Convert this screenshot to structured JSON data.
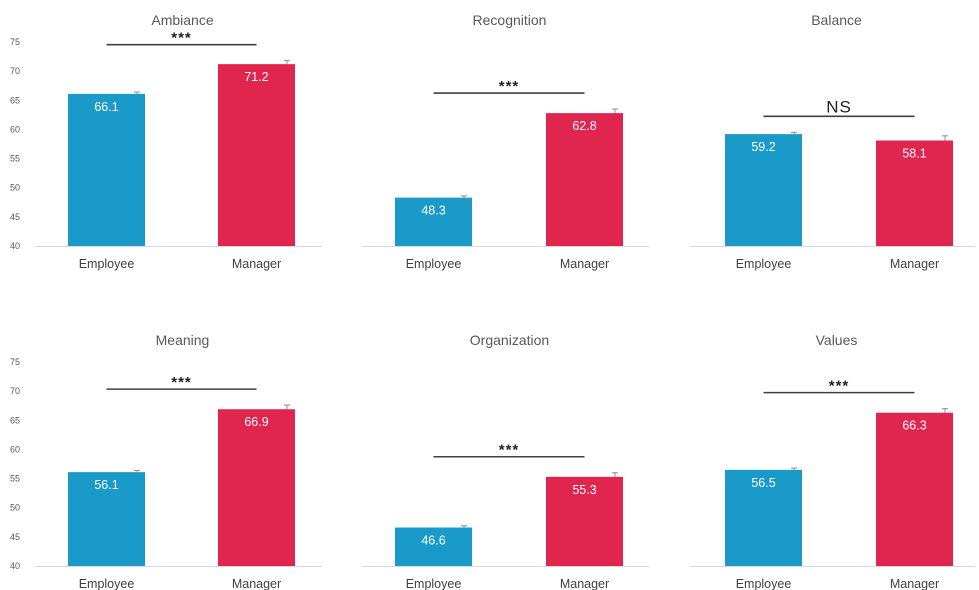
{
  "figure": {
    "colors": {
      "employee": "#1a9ac9",
      "manager": "#e0264f",
      "text": "#595959",
      "axis": "#d9d9d9"
    }
  },
  "chart_data": [
    {
      "type": "bar",
      "title": "Ambiance",
      "categories": [
        "Employee",
        "Manager"
      ],
      "values": [
        66.1,
        71.2
      ],
      "value_labels": [
        "66.1",
        "71.2"
      ],
      "error": [
        0.3,
        0.6
      ],
      "significance": "***",
      "ylim": [
        40,
        75
      ],
      "yticks": [
        40,
        45,
        50,
        55,
        60,
        65,
        70,
        75
      ],
      "show_yaxis": true,
      "grid": false
    },
    {
      "type": "bar",
      "title": "Recognition",
      "categories": [
        "Employee",
        "Manager"
      ],
      "values": [
        48.3,
        62.8
      ],
      "value_labels": [
        "48.3",
        "62.8"
      ],
      "error": [
        0.3,
        0.7
      ],
      "significance": "***",
      "ylim": [
        40,
        75
      ],
      "show_yaxis": false,
      "grid": false
    },
    {
      "type": "bar",
      "title": "Balance",
      "categories": [
        "Employee",
        "Manager"
      ],
      "values": [
        59.2,
        58.1
      ],
      "value_labels": [
        "59.2",
        "58.1"
      ],
      "error": [
        0.3,
        0.8
      ],
      "significance": "NS",
      "ylim": [
        40,
        75
      ],
      "show_yaxis": false,
      "grid": false
    },
    {
      "type": "bar",
      "title": "Meaning",
      "categories": [
        "Employee",
        "Manager"
      ],
      "values": [
        56.1,
        66.9
      ],
      "value_labels": [
        "56.1",
        "66.9"
      ],
      "error": [
        0.3,
        0.7
      ],
      "significance": "***",
      "ylim": [
        40,
        75
      ],
      "yticks": [
        40,
        45,
        50,
        55,
        60,
        65,
        70,
        75
      ],
      "show_yaxis": true,
      "grid": false
    },
    {
      "type": "bar",
      "title": "Organization",
      "categories": [
        "Employee",
        "Manager"
      ],
      "values": [
        46.6,
        55.3
      ],
      "value_labels": [
        "46.6",
        "55.3"
      ],
      "error": [
        0.3,
        0.7
      ],
      "significance": "***",
      "ylim": [
        40,
        75
      ],
      "show_yaxis": false,
      "grid": false
    },
    {
      "type": "bar",
      "title": "Values",
      "categories": [
        "Employee",
        "Manager"
      ],
      "values": [
        56.5,
        66.3
      ],
      "value_labels": [
        "56.5",
        "66.3"
      ],
      "error": [
        0.3,
        0.7
      ],
      "significance": "***",
      "ylim": [
        40,
        75
      ],
      "show_yaxis": false,
      "grid": false
    }
  ]
}
